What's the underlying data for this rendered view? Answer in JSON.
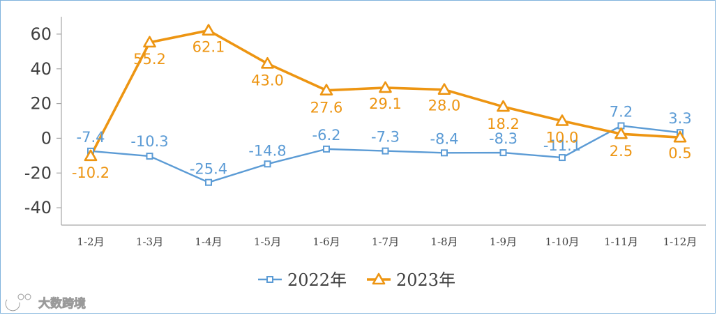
{
  "watermark": "大数跨境",
  "chart_data": {
    "type": "line",
    "title": "",
    "xlabel": "",
    "ylabel": "",
    "ylim": [
      -50,
      70
    ],
    "yticks": [
      -40,
      -20,
      0,
      20,
      40,
      60
    ],
    "grid": false,
    "legend_position": "bottom-center",
    "categories": [
      "1-2月",
      "1-3月",
      "1-4月",
      "1-5月",
      "1-6月",
      "1-7月",
      "1-8月",
      "1-9月",
      "1-10月",
      "1-11月",
      "1-12月"
    ],
    "series": [
      {
        "name": "2022年",
        "color": "#5b9bd5",
        "marker": "square",
        "values": [
          -7.4,
          -10.3,
          -25.4,
          -14.8,
          -6.2,
          -7.3,
          -8.4,
          -8.3,
          -11.1,
          7.2,
          3.3
        ],
        "labels": [
          "-7.4",
          "-10.3",
          "-25.4",
          "-14.8",
          "-6.2",
          "-7.3",
          "-8.4",
          "-8.3",
          "-11.1",
          "7.2",
          "3.3"
        ]
      },
      {
        "name": "2023年",
        "color": "#ed9512",
        "marker": "triangle",
        "values": [
          -10.2,
          55.2,
          62.1,
          43.0,
          27.6,
          29.1,
          28.0,
          18.2,
          10.0,
          2.5,
          0.5
        ],
        "labels": [
          "-10.2",
          "55.2",
          "62.1",
          "43.0",
          "27.6",
          "29.1",
          "28.0",
          "18.2",
          "10.0",
          "2.5",
          "0.5"
        ]
      }
    ]
  }
}
